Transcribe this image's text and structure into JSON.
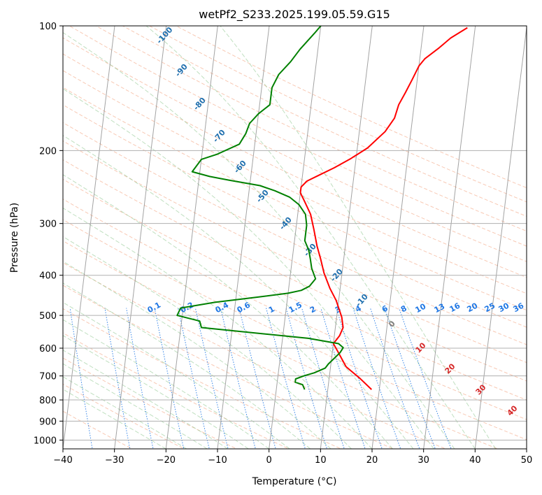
{
  "chart_data": {
    "type": "line",
    "title": "wetPf2_S233.2025.199.05.59.G15",
    "xlabel": "Temperature (°C)",
    "ylabel": "Pressure (hPa)",
    "xlim": [
      -40,
      50
    ],
    "ylim": [
      1050,
      100
    ],
    "y_scale": "log",
    "x_ticks": [
      -40,
      -30,
      -20,
      -10,
      0,
      10,
      20,
      30,
      40,
      50
    ],
    "y_ticks": [
      100,
      200,
      300,
      400,
      500,
      600,
      700,
      800,
      900,
      1000
    ],
    "grid": true,
    "series": [
      {
        "color": "#ff0000",
        "points": [
          [
            18.5,
            755
          ],
          [
            16,
            710
          ],
          [
            13,
            665
          ],
          [
            11,
            610
          ],
          [
            10,
            585
          ],
          [
            11,
            560
          ],
          [
            11.5,
            535
          ],
          [
            11,
            505
          ],
          [
            9.5,
            460
          ],
          [
            8,
            430
          ],
          [
            6.5,
            395
          ],
          [
            5.5,
            365
          ],
          [
            4.5,
            340
          ],
          [
            3.5,
            310
          ],
          [
            2.5,
            285
          ],
          [
            1,
            265
          ],
          [
            0,
            253
          ],
          [
            0,
            245
          ],
          [
            1,
            237
          ],
          [
            3,
            230
          ],
          [
            6,
            220
          ],
          [
            9,
            209
          ],
          [
            12,
            197
          ],
          [
            15,
            180
          ],
          [
            16.5,
            167
          ],
          [
            17,
            155
          ],
          [
            18,
            145
          ],
          [
            19,
            135
          ],
          [
            20,
            125
          ],
          [
            21,
            120
          ],
          [
            23.5,
            113
          ],
          [
            25.5,
            107
          ],
          [
            28.5,
            101
          ]
        ]
      },
      {
        "color": "#008000",
        "points": [
          [
            5.5,
            755
          ],
          [
            5,
            735
          ],
          [
            3.5,
            725
          ],
          [
            3.5,
            712
          ],
          [
            5,
            700
          ],
          [
            7,
            688
          ],
          [
            9,
            670
          ],
          [
            9.5,
            655
          ],
          [
            10.5,
            635
          ],
          [
            11.5,
            615
          ],
          [
            12,
            598
          ],
          [
            11,
            585
          ],
          [
            5,
            568
          ],
          [
            -16,
            535
          ],
          [
            -16.5,
            516
          ],
          [
            -21,
            500
          ],
          [
            -20.5,
            480
          ],
          [
            -14,
            465
          ],
          [
            -6,
            452
          ],
          [
            0,
            442
          ],
          [
            2.5,
            435
          ],
          [
            4,
            425
          ],
          [
            5,
            408
          ],
          [
            4,
            385
          ],
          [
            3.5,
            365
          ],
          [
            3,
            348
          ],
          [
            2,
            330
          ],
          [
            2,
            303
          ],
          [
            1.5,
            285
          ],
          [
            0,
            270
          ],
          [
            -2,
            259
          ],
          [
            -5,
            250
          ],
          [
            -8,
            243
          ],
          [
            -14,
            236
          ],
          [
            -18,
            231
          ],
          [
            -21.5,
            225
          ],
          [
            -20,
            210
          ],
          [
            -17,
            204
          ],
          [
            -13,
            193
          ],
          [
            -12,
            182
          ],
          [
            -11.5,
            172
          ],
          [
            -10,
            163
          ],
          [
            -8,
            155
          ],
          [
            -8,
            141
          ],
          [
            -7,
            131
          ],
          [
            -5,
            122
          ],
          [
            -3.5,
            114
          ],
          [
            -1,
            104
          ],
          [
            0,
            100
          ]
        ]
      }
    ],
    "annotations": {
      "isotherm_labels": [
        "-100",
        "-90",
        "-80",
        "-70",
        "-60",
        "-50",
        "-40",
        "-30",
        "-20",
        "-10"
      ],
      "mixing_ratio_labels": [
        "0.1",
        "0.2",
        "0.4",
        "0.6",
        "1",
        "1.5",
        "2",
        "3",
        "4",
        "6",
        "8",
        "10",
        "13",
        "16",
        "20",
        "25",
        "30",
        "36"
      ],
      "moist_adiabat_labels": [
        "0",
        "10",
        "20",
        "30",
        "40"
      ]
    },
    "colors": {
      "dry_adiabat": "#f4a582",
      "moist_adiabat": "#8bc48b",
      "mixing_ratio": "#1f77e4",
      "isotherm": "#808080",
      "isotherm_label": "#1f6fae",
      "moist_label": "#d62728",
      "zero_label": "#808080"
    }
  }
}
